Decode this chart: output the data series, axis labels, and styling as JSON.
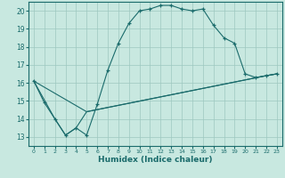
{
  "xlabel": "Humidex (Indice chaleur)",
  "ylabel": "",
  "xlim": [
    -0.5,
    23.5
  ],
  "ylim": [
    12.5,
    20.5
  ],
  "yticks": [
    13,
    14,
    15,
    16,
    17,
    18,
    19,
    20
  ],
  "xticks": [
    0,
    1,
    2,
    3,
    4,
    5,
    6,
    7,
    8,
    9,
    10,
    11,
    12,
    13,
    14,
    15,
    16,
    17,
    18,
    19,
    20,
    21,
    22,
    23
  ],
  "bg_color": "#c8e8e0",
  "line_color": "#1a6b6b",
  "grid_color": "#9ec8c0",
  "curve1_x": [
    0,
    1,
    2,
    3,
    4,
    5,
    6,
    7,
    8,
    9,
    10,
    11,
    12,
    13,
    14,
    15,
    16,
    17,
    18,
    19,
    20,
    21,
    22,
    23
  ],
  "curve1_y": [
    16.1,
    14.9,
    14.0,
    13.1,
    13.5,
    13.1,
    14.8,
    16.7,
    18.2,
    19.3,
    20.0,
    20.1,
    20.3,
    20.3,
    20.1,
    20.0,
    20.1,
    19.2,
    18.5,
    18.2,
    16.5,
    16.3,
    16.4,
    16.5
  ],
  "curve2_x": [
    0,
    2,
    3,
    4,
    5,
    22,
    23
  ],
  "curve2_y": [
    16.1,
    14.0,
    13.1,
    13.5,
    14.4,
    16.4,
    16.5
  ],
  "curve3_x": [
    0,
    5,
    22,
    23
  ],
  "curve3_y": [
    16.1,
    14.4,
    16.4,
    16.5
  ]
}
